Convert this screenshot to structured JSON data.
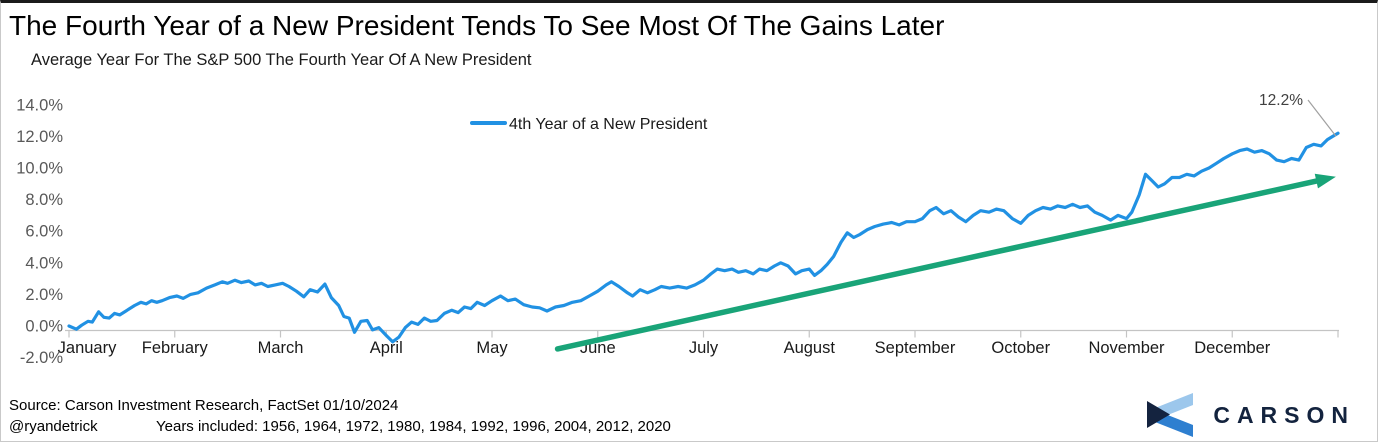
{
  "header": {
    "title": "The Fourth Year of a New President Tends To See Most Of The Gains Later",
    "subtitle": "Average Year For The S&P 500 The Fourth Year Of A New President"
  },
  "legend": {
    "label": "4th Year of a New President"
  },
  "annotation": {
    "label": "12.2%"
  },
  "footer": {
    "source": "Source: Carson Investment Research, FactSet 01/10/2024",
    "handle": "@ryandetrick",
    "years_included": "Years included: 1956, 1964, 1972, 1980, 1984, 1992, 1996, 2004, 2012, 2020"
  },
  "logo": {
    "text": "CARSON"
  },
  "colors": {
    "line": "#2191e3",
    "arrow": "#19a478",
    "axis": "#c4c4c4",
    "ytick_label": "#595959",
    "month_label": "#1a1a1a",
    "annotation_text": "#404040",
    "connector": "#a0a0a0",
    "logo_navy": "#14233f",
    "logo_light_blue": "#9cc7ec",
    "logo_mid_blue": "#2e7fd0"
  },
  "chart_data": {
    "type": "line",
    "title": "The Fourth Year of a New President Tends To See Most Of The Gains Later",
    "subtitle": "Average Year For The S&P 500 The Fourth Year Of A New President",
    "xlabel": "",
    "ylabel": "",
    "x_categories": [
      "January",
      "February",
      "March",
      "April",
      "May",
      "June",
      "July",
      "August",
      "September",
      "October",
      "November",
      "December"
    ],
    "ylim": [
      -2.0,
      14.0
    ],
    "ytick_values": [
      14,
      12,
      10,
      8,
      6,
      4,
      2,
      0,
      -2
    ],
    "ytick_labels": [
      "14.0%",
      "12.0%",
      "10.0%",
      "8.0%",
      "6.0%",
      "4.0%",
      "2.0%",
      "0.0%",
      "-2.0%"
    ],
    "grid": false,
    "legend_position": "top-center",
    "end_label": {
      "text": "12.2%",
      "month": 12.0,
      "value": 12.2
    },
    "trend_arrow": {
      "from_month": 4.62,
      "from_value": -1.45,
      "to_month": 11.98,
      "to_value": 9.45
    },
    "series": [
      {
        "name": "4th Year of a New President",
        "points": [
          [
            0.0,
            0.0
          ],
          [
            0.07,
            -0.2
          ],
          [
            0.12,
            0.05
          ],
          [
            0.18,
            0.3
          ],
          [
            0.22,
            0.25
          ],
          [
            0.28,
            0.9
          ],
          [
            0.33,
            0.55
          ],
          [
            0.38,
            0.5
          ],
          [
            0.43,
            0.8
          ],
          [
            0.48,
            0.7
          ],
          [
            0.55,
            1.0
          ],
          [
            0.62,
            1.3
          ],
          [
            0.68,
            1.5
          ],
          [
            0.73,
            1.4
          ],
          [
            0.78,
            1.6
          ],
          [
            0.83,
            1.5
          ],
          [
            0.88,
            1.6
          ],
          [
            0.95,
            1.8
          ],
          [
            1.02,
            1.9
          ],
          [
            1.08,
            1.75
          ],
          [
            1.15,
            2.0
          ],
          [
            1.22,
            2.1
          ],
          [
            1.3,
            2.4
          ],
          [
            1.38,
            2.6
          ],
          [
            1.45,
            2.8
          ],
          [
            1.5,
            2.7
          ],
          [
            1.57,
            2.9
          ],
          [
            1.63,
            2.75
          ],
          [
            1.7,
            2.85
          ],
          [
            1.76,
            2.6
          ],
          [
            1.82,
            2.7
          ],
          [
            1.88,
            2.5
          ],
          [
            1.95,
            2.6
          ],
          [
            2.02,
            2.7
          ],
          [
            2.08,
            2.5
          ],
          [
            2.15,
            2.2
          ],
          [
            2.22,
            1.85
          ],
          [
            2.28,
            2.3
          ],
          [
            2.35,
            2.15
          ],
          [
            2.42,
            2.65
          ],
          [
            2.48,
            1.8
          ],
          [
            2.55,
            1.3
          ],
          [
            2.6,
            0.6
          ],
          [
            2.65,
            0.5
          ],
          [
            2.7,
            -0.4
          ],
          [
            2.76,
            0.3
          ],
          [
            2.82,
            0.35
          ],
          [
            2.87,
            -0.25
          ],
          [
            2.93,
            -0.1
          ],
          [
            3.0,
            -0.6
          ],
          [
            3.06,
            -1.0
          ],
          [
            3.12,
            -0.7
          ],
          [
            3.18,
            -0.1
          ],
          [
            3.24,
            0.25
          ],
          [
            3.3,
            0.1
          ],
          [
            3.36,
            0.5
          ],
          [
            3.42,
            0.3
          ],
          [
            3.48,
            0.35
          ],
          [
            3.55,
            0.8
          ],
          [
            3.62,
            1.0
          ],
          [
            3.68,
            0.85
          ],
          [
            3.74,
            1.2
          ],
          [
            3.8,
            1.1
          ],
          [
            3.86,
            1.5
          ],
          [
            3.93,
            1.3
          ],
          [
            4.0,
            1.6
          ],
          [
            4.08,
            1.9
          ],
          [
            4.15,
            1.6
          ],
          [
            4.22,
            1.7
          ],
          [
            4.3,
            1.35
          ],
          [
            4.38,
            1.2
          ],
          [
            4.45,
            1.15
          ],
          [
            4.52,
            0.95
          ],
          [
            4.6,
            1.2
          ],
          [
            4.68,
            1.3
          ],
          [
            4.76,
            1.5
          ],
          [
            4.84,
            1.6
          ],
          [
            4.92,
            1.9
          ],
          [
            5.0,
            2.2
          ],
          [
            5.08,
            2.6
          ],
          [
            5.13,
            2.8
          ],
          [
            5.2,
            2.5
          ],
          [
            5.28,
            2.1
          ],
          [
            5.33,
            1.9
          ],
          [
            5.4,
            2.3
          ],
          [
            5.47,
            2.1
          ],
          [
            5.54,
            2.3
          ],
          [
            5.6,
            2.5
          ],
          [
            5.68,
            2.4
          ],
          [
            5.76,
            2.5
          ],
          [
            5.84,
            2.4
          ],
          [
            5.92,
            2.6
          ],
          [
            6.0,
            2.9
          ],
          [
            6.07,
            3.3
          ],
          [
            6.13,
            3.6
          ],
          [
            6.2,
            3.5
          ],
          [
            6.27,
            3.6
          ],
          [
            6.33,
            3.4
          ],
          [
            6.4,
            3.5
          ],
          [
            6.47,
            3.3
          ],
          [
            6.53,
            3.6
          ],
          [
            6.6,
            3.5
          ],
          [
            6.67,
            3.8
          ],
          [
            6.73,
            4.0
          ],
          [
            6.8,
            3.8
          ],
          [
            6.87,
            3.3
          ],
          [
            6.93,
            3.5
          ],
          [
            7.0,
            3.6
          ],
          [
            7.05,
            3.2
          ],
          [
            7.11,
            3.5
          ],
          [
            7.17,
            3.9
          ],
          [
            7.23,
            4.4
          ],
          [
            7.3,
            5.3
          ],
          [
            7.36,
            5.9
          ],
          [
            7.42,
            5.6
          ],
          [
            7.48,
            5.8
          ],
          [
            7.55,
            6.1
          ],
          [
            7.62,
            6.3
          ],
          [
            7.7,
            6.45
          ],
          [
            7.78,
            6.55
          ],
          [
            7.85,
            6.4
          ],
          [
            7.92,
            6.6
          ],
          [
            8.0,
            6.6
          ],
          [
            8.07,
            6.8
          ],
          [
            8.14,
            7.3
          ],
          [
            8.2,
            7.5
          ],
          [
            8.27,
            7.1
          ],
          [
            8.34,
            7.3
          ],
          [
            8.41,
            6.9
          ],
          [
            8.48,
            6.6
          ],
          [
            8.55,
            7.0
          ],
          [
            8.62,
            7.3
          ],
          [
            8.7,
            7.2
          ],
          [
            8.77,
            7.4
          ],
          [
            8.84,
            7.3
          ],
          [
            8.92,
            6.8
          ],
          [
            9.0,
            6.5
          ],
          [
            9.07,
            7.0
          ],
          [
            9.14,
            7.3
          ],
          [
            9.21,
            7.5
          ],
          [
            9.28,
            7.4
          ],
          [
            9.35,
            7.6
          ],
          [
            9.42,
            7.5
          ],
          [
            9.49,
            7.7
          ],
          [
            9.56,
            7.5
          ],
          [
            9.63,
            7.6
          ],
          [
            9.7,
            7.2
          ],
          [
            9.77,
            7.0
          ],
          [
            9.85,
            6.7
          ],
          [
            9.92,
            7.0
          ],
          [
            10.0,
            6.8
          ],
          [
            10.05,
            7.2
          ],
          [
            10.12,
            8.3
          ],
          [
            10.18,
            9.6
          ],
          [
            10.24,
            9.2
          ],
          [
            10.3,
            8.8
          ],
          [
            10.36,
            9.0
          ],
          [
            10.43,
            9.4
          ],
          [
            10.5,
            9.4
          ],
          [
            10.57,
            9.6
          ],
          [
            10.64,
            9.5
          ],
          [
            10.71,
            9.8
          ],
          [
            10.78,
            10.0
          ],
          [
            10.85,
            10.3
          ],
          [
            10.92,
            10.6
          ],
          [
            11.0,
            10.9
          ],
          [
            11.07,
            11.1
          ],
          [
            11.14,
            11.2
          ],
          [
            11.21,
            11.0
          ],
          [
            11.28,
            11.1
          ],
          [
            11.35,
            10.9
          ],
          [
            11.42,
            10.5
          ],
          [
            11.49,
            10.4
          ],
          [
            11.56,
            10.6
          ],
          [
            11.63,
            10.5
          ],
          [
            11.7,
            11.3
          ],
          [
            11.77,
            11.5
          ],
          [
            11.84,
            11.4
          ],
          [
            11.9,
            11.8
          ],
          [
            11.95,
            12.0
          ],
          [
            12.0,
            12.2
          ]
        ]
      }
    ]
  }
}
